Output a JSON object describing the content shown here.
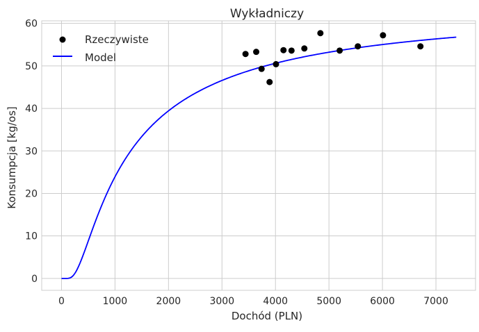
{
  "chart_data": {
    "type": "scatter",
    "title": "Wykładniczy",
    "xlabel": "Dochód (PLN)",
    "ylabel": "Konsumpcja [kg/os]",
    "xlim": [
      -370,
      7740
    ],
    "ylim": [
      -2.8,
      60.6
    ],
    "xticks": [
      0,
      1000,
      2000,
      3000,
      4000,
      5000,
      6000,
      7000
    ],
    "yticks": [
      0,
      10,
      20,
      30,
      40,
      50,
      60
    ],
    "grid": true,
    "legend_position": "top-left",
    "series": [
      {
        "name": "Rzeczywiste",
        "kind": "scatter",
        "color": "#000000",
        "points": [
          [
            3440,
            52.8
          ],
          [
            3640,
            53.3
          ],
          [
            3740,
            49.3
          ],
          [
            3890,
            46.2
          ],
          [
            4010,
            50.4
          ],
          [
            4150,
            53.7
          ],
          [
            4300,
            53.6
          ],
          [
            4540,
            54.1
          ],
          [
            4840,
            57.7
          ],
          [
            5200,
            53.6
          ],
          [
            5540,
            54.6
          ],
          [
            6010,
            57.2
          ],
          [
            6710,
            54.6
          ]
        ]
      },
      {
        "name": "Model",
        "kind": "line",
        "color": "#0000ff",
        "model": {
          "a": 65,
          "b": 1000,
          "x_from": 0,
          "x_to": 7380
        }
      }
    ]
  }
}
